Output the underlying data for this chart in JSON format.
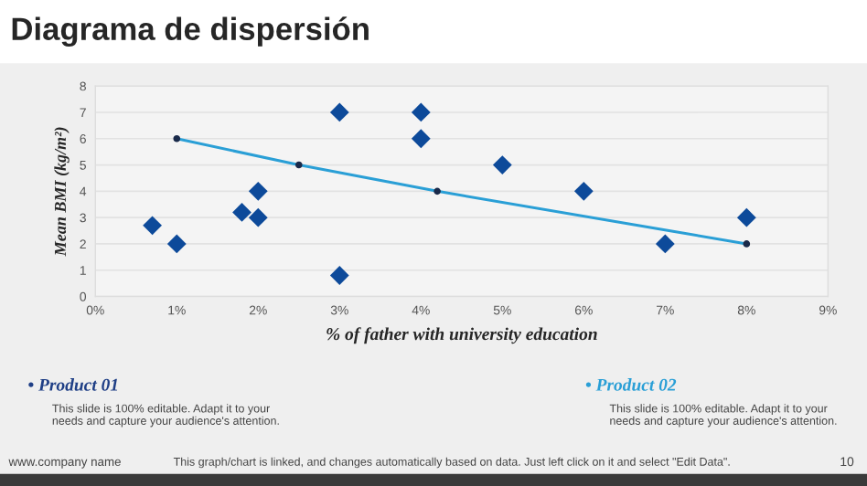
{
  "chart_data": {
    "type": "scatter",
    "title": "Diagrama de dispersión",
    "xlabel": "% of father with university education",
    "ylabel": "Mean BMI (kg/m²)",
    "xlim": [
      0,
      9
    ],
    "xticks": [
      {
        "value": 0,
        "label": "0%"
      },
      {
        "value": 1,
        "label": "1%"
      },
      {
        "value": 2,
        "label": "2%"
      },
      {
        "value": 3,
        "label": "3%"
      },
      {
        "value": 4,
        "label": "4%"
      },
      {
        "value": 5,
        "label": "5%"
      },
      {
        "value": 6,
        "label": "6%"
      },
      {
        "value": 7,
        "label": "7%"
      },
      {
        "value": 8,
        "label": "8%"
      },
      {
        "value": 9,
        "label": "9%"
      }
    ],
    "ylim": [
      0,
      8
    ],
    "yticks": [
      0,
      1,
      2,
      3,
      4,
      5,
      6,
      7,
      8
    ],
    "grid": "y",
    "series": [
      {
        "color": "#0d4a9a",
        "marker": "diamond",
        "x": [
          0.7,
          1,
          1.8,
          2,
          2,
          3,
          3,
          4,
          4,
          5,
          6,
          7,
          8
        ],
        "values": [
          2.7,
          2,
          3.2,
          4,
          3,
          7,
          0.8,
          7,
          6,
          5,
          4,
          2,
          3
        ]
      },
      {
        "type": "line",
        "color": "#2a9fd6",
        "marker": "circle",
        "x": [
          1,
          2.5,
          4.2,
          8
        ],
        "values": [
          6,
          5,
          4,
          2
        ]
      }
    ],
    "annotations": [
      "• Product 01",
      "This slide is 100% editable. Adapt it to your needs and capture your audience's attention.",
      "• Product 02",
      "This slide is 100% editable. Adapt it to your needs and capture your audience's attention.",
      "www.company name",
      "This graph/chart is linked, and changes automatically based on data. Just left click on it and select \"Edit Data\".",
      "10"
    ]
  }
}
